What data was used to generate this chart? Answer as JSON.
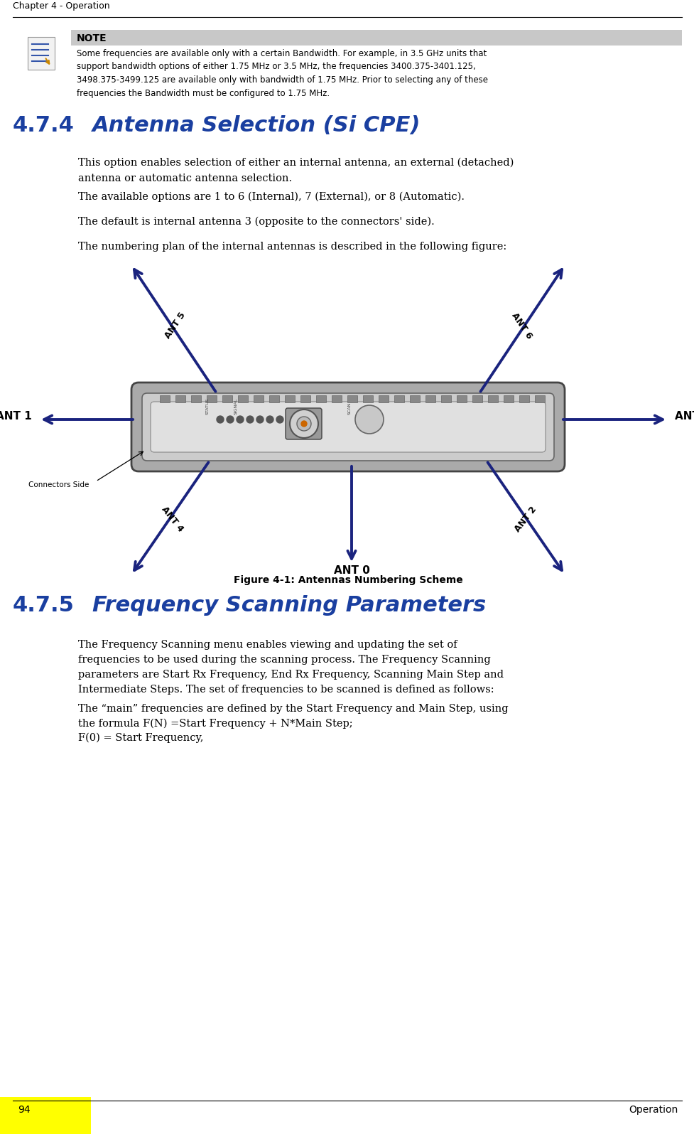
{
  "page_title": "Chapter 4 - Operation",
  "footer_page": "94",
  "footer_right": "Operation",
  "note_title": "NOTE",
  "note_text": "Some frequencies are available only with a certain Bandwidth. For example, in 3.5 GHz units that\nsupport bandwidth options of either 1.75 MHz or 3.5 MHz, the frequencies 3400.375-3401.125,\n3498.375-3499.125 are available only with bandwidth of 1.75 MHz. Prior to selecting any of these\nfrequencies the Bandwidth must be configured to 1.75 MHz.",
  "section_474": "4.7.4",
  "section_474_title": "Antenna Selection (Si CPE)",
  "para1": "This option enables selection of either an internal antenna, an external (detached)\nantenna or automatic antenna selection.",
  "para2": "The available options are 1 to 6 (Internal), 7 (External), or 8 (Automatic).",
  "para3": "The default is internal antenna 3 (opposite to the connectors' side).",
  "para4": "The numbering plan of the internal antennas is described in the following figure:",
  "figure_caption": "Figure 4-1: Antennas Numbering Scheme",
  "section_475": "4.7.5",
  "section_475_title": "Frequency Scanning Parameters",
  "para5": "The Frequency Scanning menu enables viewing and updating the set of\nfrequencies to be used during the scanning process. The Frequency Scanning\nparameters are Start Rx Frequency, End Rx Frequency, Scanning Main Step and\nIntermediate Steps. The set of frequencies to be scanned is defined as follows:",
  "para6": "The “main” frequencies are defined by the Start Frequency and Main Step, using\nthe formula F(N) =Start Frequency + N*Main Step;\nF(0) = Start Frequency,",
  "bg_color": "#ffffff",
  "header_line_color": "#000000",
  "footer_line_color": "#000000",
  "note_bg_color": "#c8c8c8",
  "section_color": "#1a3fa0",
  "text_color": "#000000",
  "arrow_color": "#1a237e",
  "yellow_bg": "#ffff00",
  "device_outer": "#b0b0b0",
  "device_inner": "#d8d8d8",
  "device_edge": "#555555"
}
